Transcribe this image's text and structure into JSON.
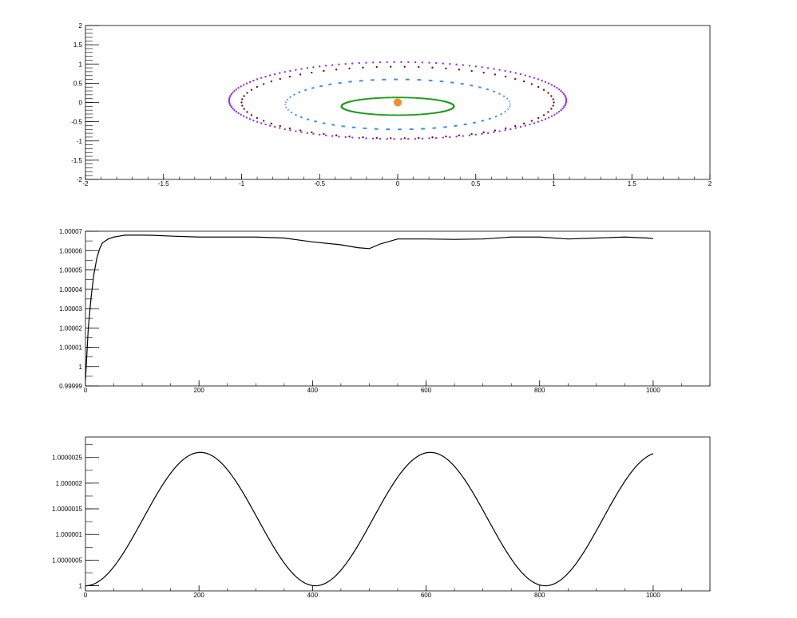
{
  "chart_data": [
    {
      "type": "scatter",
      "title": "",
      "xlabel": "",
      "ylabel": "",
      "xlim": [
        -2,
        2
      ],
      "ylim": [
        -2,
        2
      ],
      "grid": false,
      "x_ticks": [
        "-2",
        "-1.5",
        "-1",
        "-0.5",
        "0",
        "0.5",
        "1",
        "1.5",
        "2"
      ],
      "y_ticks": [
        "-2",
        "-1.5",
        "-1",
        "-0.5",
        "0",
        "0.5",
        "1",
        "1.5",
        "2"
      ],
      "center": {
        "x": 0.0,
        "y": 0.0,
        "color": "#f28e2b"
      },
      "orbits": [
        {
          "color": "#1a9b1a",
          "a": 0.36,
          "b": 0.23,
          "cx": 0.0,
          "cy": -0.1,
          "style": "dense"
        },
        {
          "color": "#3b8ee8",
          "a": 0.72,
          "b": 0.65,
          "cx": 0.0,
          "cy": -0.05,
          "style": "dashed"
        },
        {
          "color": "#7a1010",
          "a": 1.0,
          "b": 0.93,
          "cx": 0.0,
          "cy": 0.0,
          "style": "sparse"
        },
        {
          "color": "#9b30e0",
          "a": 1.08,
          "b": 1.0,
          "cx": 0.0,
          "cy": 0.05,
          "style": "dotted"
        }
      ]
    },
    {
      "type": "line",
      "title": "",
      "xlabel": "",
      "ylabel": "",
      "xlim": [
        0,
        1100
      ],
      "ylim": [
        0.99999,
        1.00007
      ],
      "grid": false,
      "x_ticks": [
        "0",
        "200",
        "400",
        "600",
        "800",
        "1000"
      ],
      "y_ticks": [
        "0.99999",
        "1",
        "1.00001",
        "1.00002",
        "1.00003",
        "1.00004",
        "1.00005",
        "1.00006",
        "1.00007"
      ],
      "x": [
        0,
        5,
        10,
        15,
        20,
        25,
        30,
        40,
        50,
        60,
        70,
        80,
        100,
        120,
        150,
        200,
        250,
        300,
        350,
        400,
        450,
        480,
        500,
        520,
        550,
        600,
        650,
        700,
        750,
        800,
        850,
        900,
        950,
        990,
        1000
      ],
      "y": [
        0.999993,
        1.00002,
        1.000036,
        1.000048,
        1.000056,
        1.000061,
        1.000064,
        1.000066,
        1.000067,
        1.0000675,
        1.000068,
        1.000068,
        1.000068,
        1.0000679,
        1.0000675,
        1.000067,
        1.000067,
        1.000067,
        1.0000665,
        1.0000645,
        1.000063,
        1.0000615,
        1.000061,
        1.0000635,
        1.000066,
        1.000066,
        1.0000658,
        1.000066,
        1.000067,
        1.000067,
        1.000066,
        1.0000665,
        1.000067,
        1.0000665,
        1.0000662
      ]
    },
    {
      "type": "line",
      "title": "",
      "xlabel": "",
      "ylabel": "",
      "xlim": [
        0,
        1100
      ],
      "ylim": [
        0.9999999,
        1.0000029
      ],
      "grid": false,
      "x_ticks": [
        "0",
        "200",
        "400",
        "600",
        "800",
        "1000"
      ],
      "y_ticks": [
        "1",
        "1.0000005",
        "1.000001",
        "1.0000015",
        "1.000002",
        "1.0000025"
      ],
      "period": 405,
      "amplitude": 1.3e-06,
      "mean": 1.0000013,
      "phase_x_of_minimum": 0,
      "x_max": 1000
    }
  ]
}
